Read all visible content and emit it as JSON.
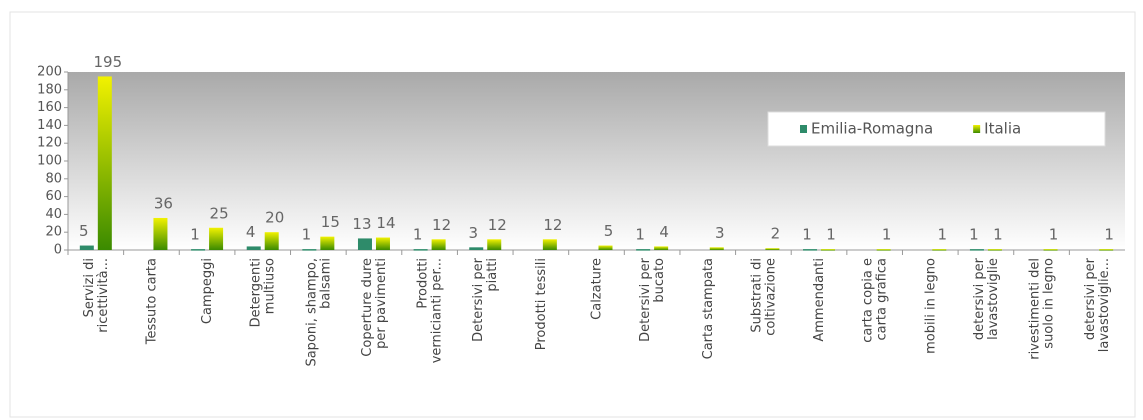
{
  "chart_data": {
    "type": "bar",
    "categories": [
      "Servizi di\nricettività...",
      "Tessuto carta",
      "Campeggi",
      "Detergenti\nmultiuso",
      "Saponi, shampo,\nbalsami",
      "Coperture dure\nper pavimenti",
      "Prodotti\nvernicianti per...",
      "Detersivi per\npiatti",
      "Prodotti tessili",
      "Calzature",
      "Detersivi per\nbucato",
      "Carta stampata",
      "Substrati di\ncoltivazione",
      "Ammendanti",
      "carta copia e\ncarta grafica",
      "mobili in legno",
      "detersivi per\nlavastoviglie",
      "rivestimenti del\nsuolo in legno",
      "detersivi per\nlavastoviglie..."
    ],
    "series": [
      {
        "name": "Emilia-Romagna",
        "color": "#2e8b6a",
        "values": [
          5,
          null,
          1,
          4,
          1,
          13,
          1,
          3,
          null,
          null,
          1,
          null,
          null,
          1,
          null,
          null,
          1,
          null,
          null
        ]
      },
      {
        "name": "Italia",
        "color": "#f2f200",
        "values": [
          195,
          36,
          25,
          20,
          15,
          14,
          12,
          12,
          12,
          5,
          4,
          3,
          2,
          1,
          1,
          1,
          1,
          1,
          1
        ]
      }
    ],
    "ylim": [
      0,
      200
    ],
    "yticks": [
      0,
      20,
      40,
      60,
      80,
      100,
      120,
      140,
      160,
      180,
      200
    ],
    "legend": "upper-right"
  }
}
